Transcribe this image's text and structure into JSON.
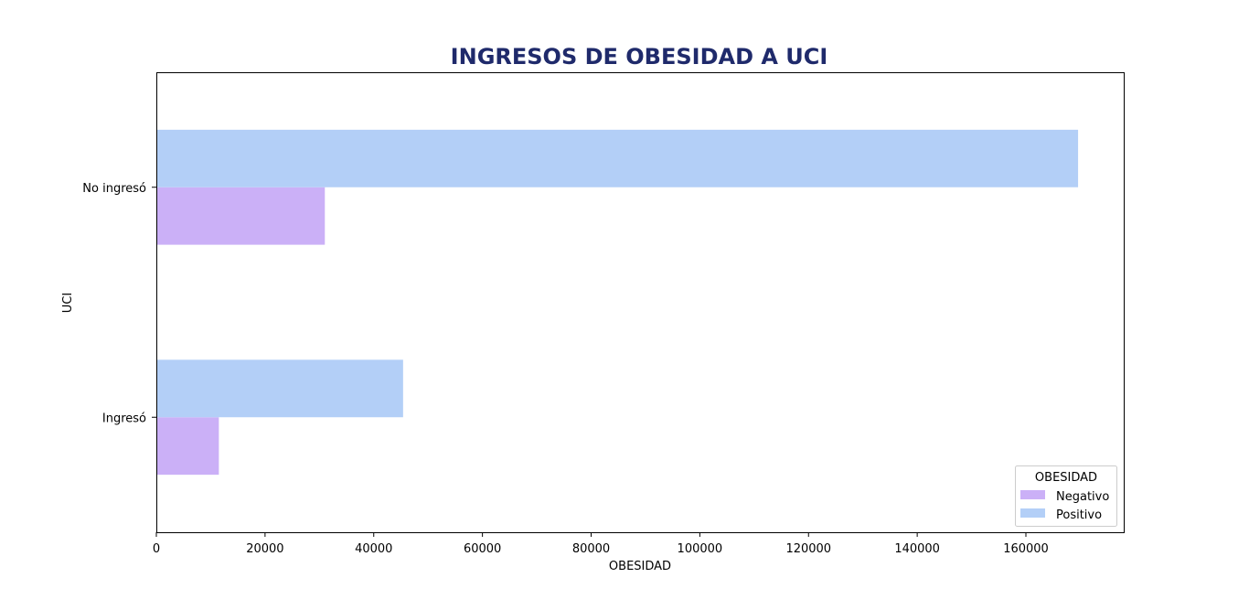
{
  "chart_data": {
    "type": "bar",
    "orientation": "horizontal",
    "title": "INGRESOS DE OBESIDAD A UCI",
    "title_color": "#1f2a6b",
    "xlabel": "OBESIDAD",
    "ylabel": "UCI",
    "categories": [
      "Ingresó",
      "No ingresó"
    ],
    "series": [
      {
        "name": "Negativo",
        "values": [
          11500,
          31000
        ],
        "color": "#cbb0f7"
      },
      {
        "name": "Positivo",
        "values": [
          45400,
          169600
        ],
        "color": "#b3cff7"
      }
    ],
    "xlim": [
      0,
      178000
    ],
    "xticks": [
      0,
      20000,
      40000,
      60000,
      80000,
      100000,
      120000,
      140000,
      160000
    ],
    "grid": false,
    "legend": {
      "title": "OBESIDAD",
      "placement": "bottom-right"
    }
  }
}
